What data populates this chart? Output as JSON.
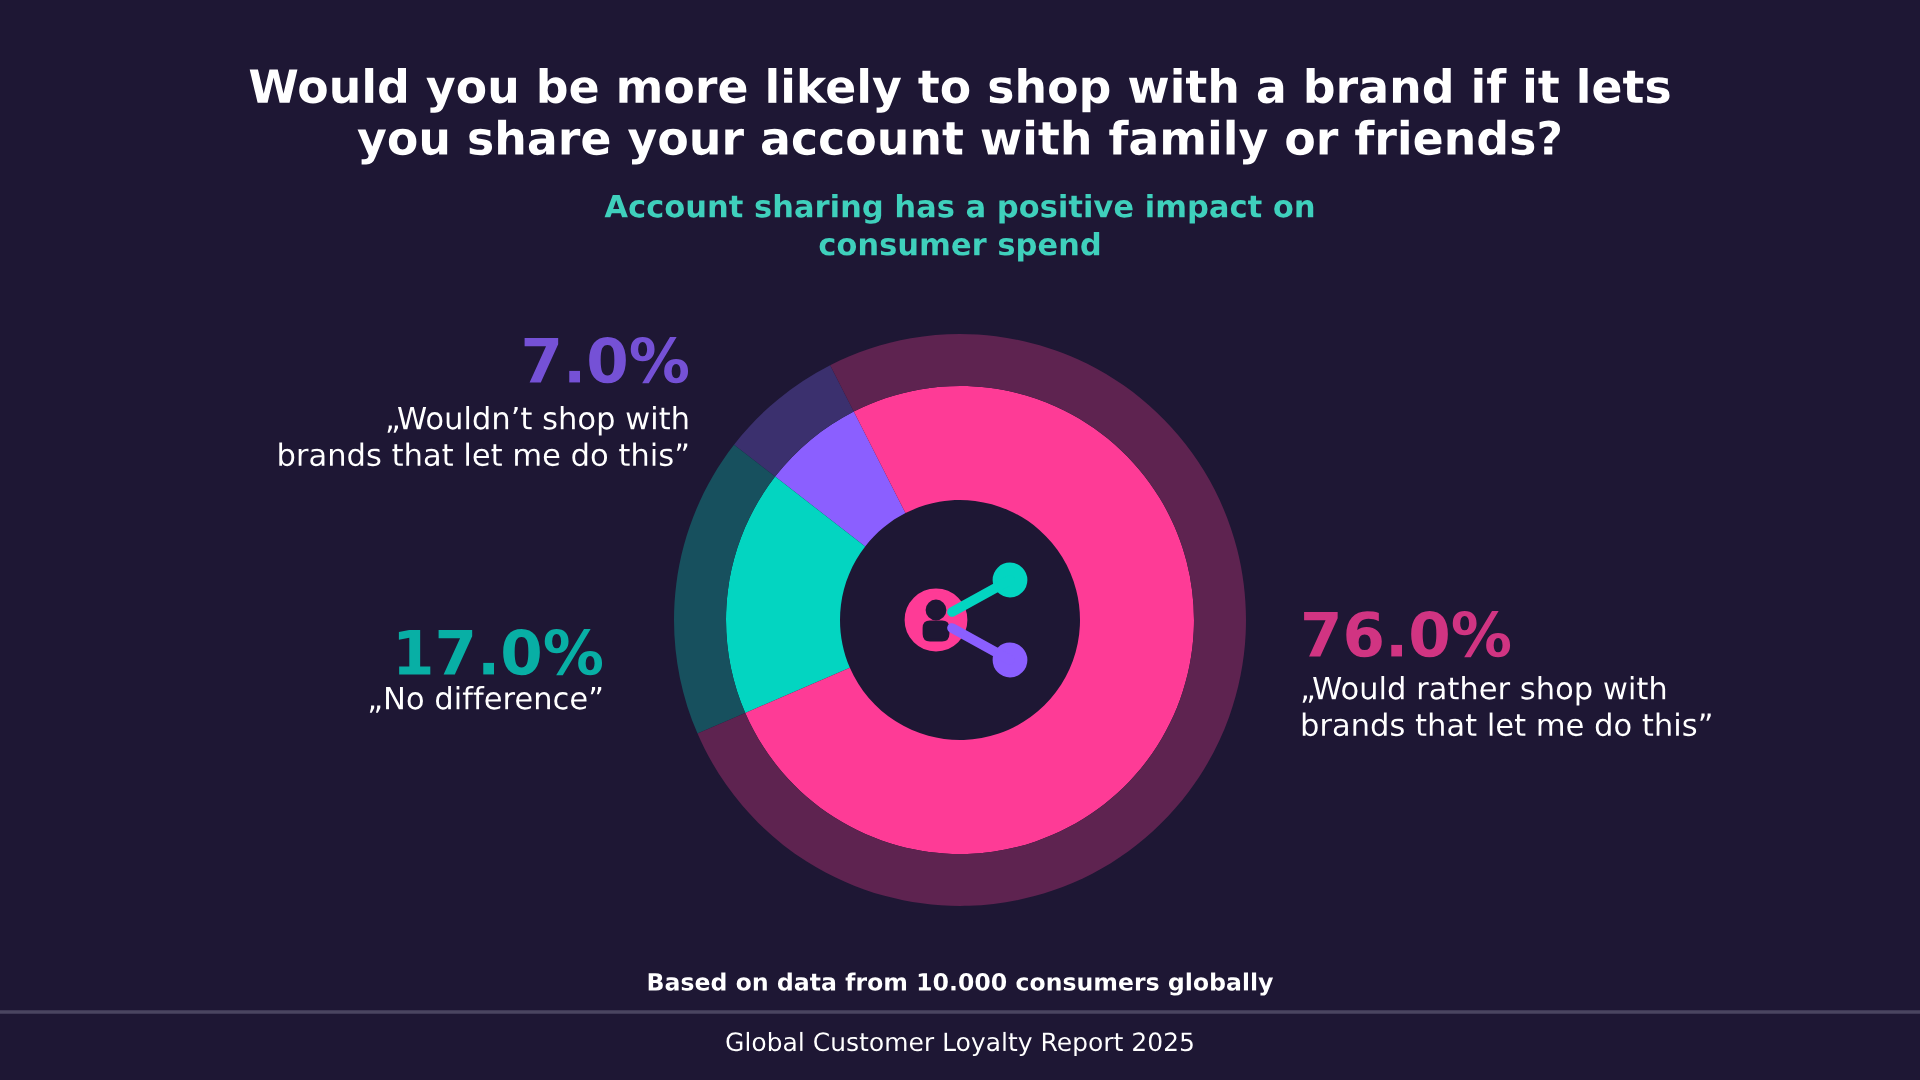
{
  "chart_data": {
    "type": "donut",
    "title": "Would you be more likely to shop with a brand if it lets\nyou share your account with family or friends?",
    "subtitle": "Account sharing has a positive impact on\nconsumer spend",
    "categories": [
      "„Wouldn’t shop with\nbrands that let me do this”",
      "„No difference”",
      "„Would rather shop with\nbrands that let me do this”"
    ],
    "series": [
      {
        "values": [
          7.0,
          17.0,
          76.0
        ],
        "colors": [
          "#8b5fff",
          "#03d5c1",
          "#fe3b96"
        ]
      },
      {
        "values": [
          7.0,
          17.0,
          76.0
        ],
        "colors": [
          "#3b306e",
          "#17505e",
          "#5e2350"
        ]
      }
    ],
    "value_labels": [
      "7.0%",
      "17.0%",
      "76.0%"
    ],
    "annotations": [
      "Based on data from 10.000 consumers globally",
      "Global Customer Loyalty Report 2025"
    ]
  }
}
